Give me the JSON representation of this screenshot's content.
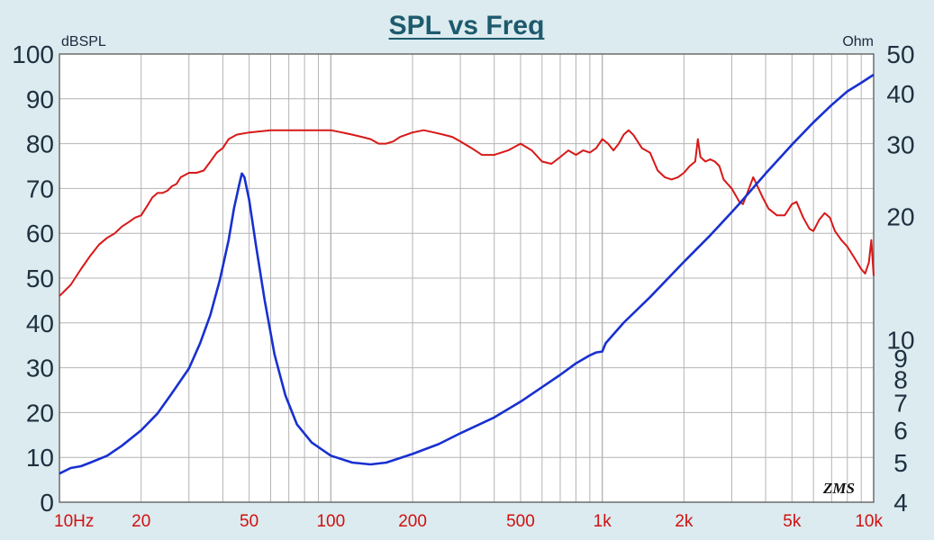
{
  "chart_data": {
    "type": "line",
    "title": "SPL vs Freq",
    "watermark": "ZMS",
    "xscale": "log",
    "xlim": [
      10,
      10000
    ],
    "x_tick_values": [
      10,
      20,
      50,
      100,
      200,
      500,
      1000,
      2000,
      5000,
      10000
    ],
    "x_tick_labels": [
      "10Hz",
      "20",
      "50",
      "100",
      "200",
      "500",
      "1k",
      "2k",
      "5k",
      "10k"
    ],
    "y_left": {
      "unit_label": "dBSPL",
      "lim": [
        0,
        100
      ],
      "ticks": [
        0,
        10,
        20,
        30,
        40,
        50,
        60,
        70,
        80,
        90,
        100
      ],
      "tick_labels": [
        "0",
        "10",
        "20",
        "30",
        "40",
        "50",
        "60",
        "70",
        "80",
        "90",
        "100"
      ]
    },
    "y_right": {
      "unit_label": "Ohm",
      "scale": "log",
      "lim": [
        4,
        50
      ],
      "ticks": [
        4,
        5,
        6,
        7,
        8,
        9,
        10,
        20,
        30,
        40,
        50
      ],
      "tick_labels": [
        "4",
        "5",
        "6",
        "7",
        "8",
        "9",
        "10",
        "20",
        "30",
        "40",
        "50"
      ]
    },
    "grid": true,
    "colors": {
      "background": "#dcebef",
      "plot_background": "#ffffff",
      "grid": "#b4b4b4",
      "spl": "#d81818",
      "impedance": "#1830d0"
    },
    "series": [
      {
        "axis": "left",
        "color": "#d81818",
        "points": [
          [
            10,
            46
          ],
          [
            11,
            48.5
          ],
          [
            12,
            52
          ],
          [
            13,
            55
          ],
          [
            14,
            57.5
          ],
          [
            15,
            59
          ],
          [
            16,
            60
          ],
          [
            17,
            61.5
          ],
          [
            18,
            62.5
          ],
          [
            19,
            63.5
          ],
          [
            20,
            64
          ],
          [
            21,
            66
          ],
          [
            22,
            68
          ],
          [
            23,
            69
          ],
          [
            24,
            69
          ],
          [
            25,
            69.5
          ],
          [
            26,
            70.5
          ],
          [
            27,
            71
          ],
          [
            28,
            72.5
          ],
          [
            29,
            73
          ],
          [
            30,
            73.5
          ],
          [
            32,
            73.5
          ],
          [
            34,
            74
          ],
          [
            36,
            76
          ],
          [
            38,
            78
          ],
          [
            40,
            79
          ],
          [
            42,
            81
          ],
          [
            45,
            82
          ],
          [
            50,
            82.5
          ],
          [
            60,
            83
          ],
          [
            70,
            83
          ],
          [
            80,
            83
          ],
          [
            90,
            83
          ],
          [
            100,
            83
          ],
          [
            110,
            82.5
          ],
          [
            120,
            82
          ],
          [
            130,
            81.5
          ],
          [
            140,
            81
          ],
          [
            150,
            80
          ],
          [
            160,
            80
          ],
          [
            170,
            80.5
          ],
          [
            180,
            81.5
          ],
          [
            200,
            82.5
          ],
          [
            220,
            83
          ],
          [
            240,
            82.5
          ],
          [
            260,
            82
          ],
          [
            280,
            81.5
          ],
          [
            300,
            80.5
          ],
          [
            330,
            79
          ],
          [
            360,
            77.5
          ],
          [
            400,
            77.5
          ],
          [
            450,
            78.5
          ],
          [
            500,
            80
          ],
          [
            550,
            78.5
          ],
          [
            600,
            76
          ],
          [
            650,
            75.5
          ],
          [
            700,
            77
          ],
          [
            750,
            78.5
          ],
          [
            800,
            77.5
          ],
          [
            850,
            78.5
          ],
          [
            900,
            78
          ],
          [
            950,
            79
          ],
          [
            1000,
            81
          ],
          [
            1050,
            80
          ],
          [
            1100,
            78.5
          ],
          [
            1150,
            80
          ],
          [
            1200,
            82
          ],
          [
            1250,
            83
          ],
          [
            1300,
            82
          ],
          [
            1400,
            79
          ],
          [
            1500,
            78
          ],
          [
            1600,
            74
          ],
          [
            1700,
            72.5
          ],
          [
            1800,
            72
          ],
          [
            1900,
            72.5
          ],
          [
            2000,
            73.5
          ],
          [
            2100,
            75
          ],
          [
            2200,
            76
          ],
          [
            2250,
            81
          ],
          [
            2300,
            77
          ],
          [
            2400,
            76
          ],
          [
            2500,
            76.5
          ],
          [
            2600,
            76
          ],
          [
            2700,
            75
          ],
          [
            2800,
            72
          ],
          [
            3000,
            70
          ],
          [
            3200,
            67
          ],
          [
            3300,
            66.5
          ],
          [
            3500,
            70.5
          ],
          [
            3600,
            72.5
          ],
          [
            3700,
            71
          ],
          [
            3900,
            68
          ],
          [
            4100,
            65.5
          ],
          [
            4400,
            64
          ],
          [
            4700,
            64
          ],
          [
            5000,
            66.5
          ],
          [
            5200,
            67
          ],
          [
            5500,
            63.5
          ],
          [
            5800,
            61
          ],
          [
            6000,
            60.5
          ],
          [
            6300,
            63
          ],
          [
            6600,
            64.5
          ],
          [
            6900,
            63.5
          ],
          [
            7200,
            60.5
          ],
          [
            7600,
            58.5
          ],
          [
            8000,
            57
          ],
          [
            8500,
            54.5
          ],
          [
            9000,
            52
          ],
          [
            9300,
            51
          ],
          [
            9600,
            53.5
          ],
          [
            9800,
            58.5
          ],
          [
            10000,
            50.5
          ]
        ]
      },
      {
        "axis": "right",
        "color": "#1830d0",
        "points": [
          [
            10,
            4.7
          ],
          [
            11,
            4.85
          ],
          [
            12,
            4.9
          ],
          [
            13,
            5.0
          ],
          [
            15,
            5.2
          ],
          [
            17,
            5.5
          ],
          [
            20,
            6.0
          ],
          [
            23,
            6.6
          ],
          [
            26,
            7.4
          ],
          [
            30,
            8.5
          ],
          [
            33,
            9.8
          ],
          [
            36,
            11.5
          ],
          [
            39,
            14
          ],
          [
            42,
            17.5
          ],
          [
            44,
            21
          ],
          [
            46,
            24
          ],
          [
            47,
            25.5
          ],
          [
            48,
            25
          ],
          [
            50,
            22
          ],
          [
            53,
            17
          ],
          [
            57,
            12.5
          ],
          [
            62,
            9.2
          ],
          [
            68,
            7.3
          ],
          [
            75,
            6.2
          ],
          [
            85,
            5.6
          ],
          [
            100,
            5.2
          ],
          [
            120,
            5.0
          ],
          [
            140,
            4.95
          ],
          [
            160,
            5.0
          ],
          [
            200,
            5.25
          ],
          [
            250,
            5.55
          ],
          [
            300,
            5.9
          ],
          [
            400,
            6.45
          ],
          [
            500,
            7.05
          ],
          [
            600,
            7.65
          ],
          [
            700,
            8.2
          ],
          [
            800,
            8.75
          ],
          [
            900,
            9.15
          ],
          [
            950,
            9.3
          ],
          [
            1000,
            9.35
          ],
          [
            1030,
            9.8
          ],
          [
            1100,
            10.3
          ],
          [
            1200,
            11.0
          ],
          [
            1500,
            12.7
          ],
          [
            2000,
            15.5
          ],
          [
            2500,
            18.0
          ],
          [
            3000,
            20.5
          ],
          [
            3200,
            21.5
          ],
          [
            4000,
            25.5
          ],
          [
            5000,
            30.0
          ],
          [
            6000,
            34.0
          ],
          [
            7000,
            37.5
          ],
          [
            8000,
            40.5
          ],
          [
            9000,
            42.5
          ],
          [
            10000,
            44.5
          ]
        ]
      }
    ]
  }
}
